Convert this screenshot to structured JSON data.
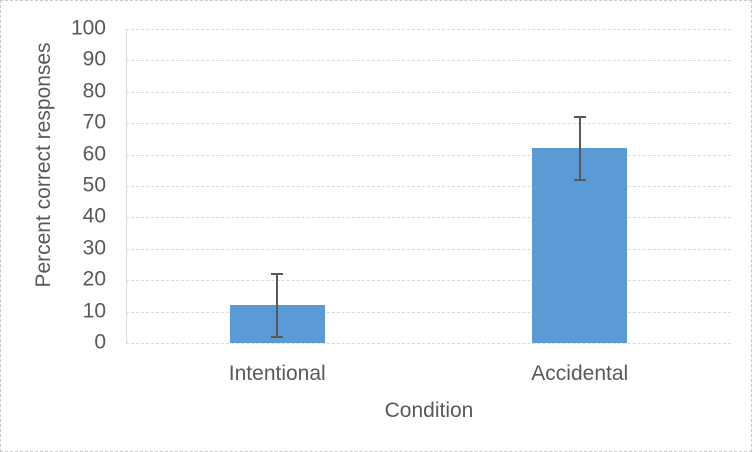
{
  "chart_data": {
    "type": "bar",
    "title": "",
    "categories": [
      "Intentional",
      "Accidental"
    ],
    "values": [
      12,
      62
    ],
    "errors": [
      10,
      10
    ],
    "xlabel": "Condition",
    "ylabel": "Percent correct responses",
    "ylim": [
      0,
      100
    ],
    "yticks": [
      0,
      10,
      20,
      30,
      40,
      50,
      60,
      70,
      80,
      90,
      100
    ],
    "grid": true,
    "gridline_style": "dashed",
    "legend": false,
    "colors": {
      "bar_fill": "#5b9bd5",
      "error_bar": "#595959",
      "axis_text": "#595959",
      "gridline": "#d9d9d9",
      "axis_line": "#d9d9d9",
      "frame_border": "#c8c8c8",
      "background": "#ffffff"
    }
  }
}
